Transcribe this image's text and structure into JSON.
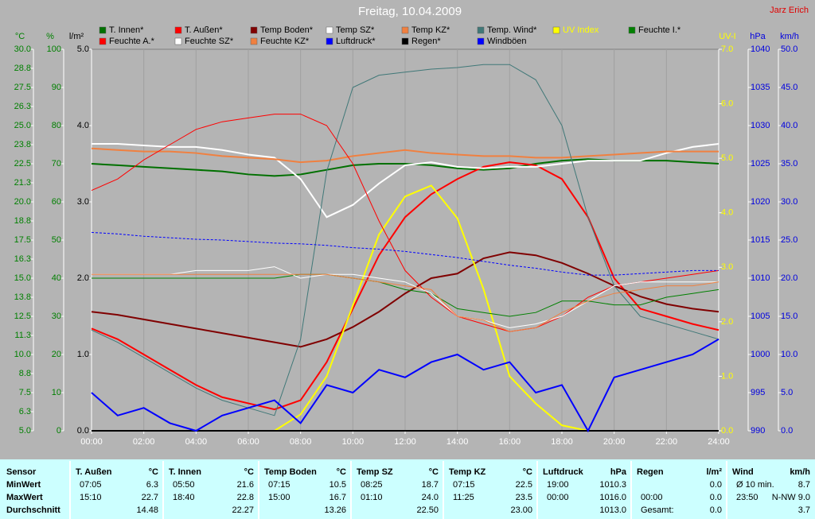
{
  "chart_data": {
    "type": "line",
    "title": "Freitag, 10.04.2009",
    "author": "Jarz Erich",
    "xlim": [
      0,
      24
    ],
    "xticks": [
      {
        "value": 0,
        "label": "00:00"
      },
      {
        "value": 2,
        "label": "02:00"
      },
      {
        "value": 4,
        "label": "04:00"
      },
      {
        "value": 6,
        "label": "06:00"
      },
      {
        "value": 8,
        "label": "08:00"
      },
      {
        "value": 10,
        "label": "10:00"
      },
      {
        "value": 12,
        "label": "12:00"
      },
      {
        "value": 14,
        "label": "14:00"
      },
      {
        "value": 16,
        "label": "16:00"
      },
      {
        "value": 18,
        "label": "18:00"
      },
      {
        "value": 20,
        "label": "20:00"
      },
      {
        "value": 22,
        "label": "22:00"
      },
      {
        "value": 24,
        "label": "24:00"
      }
    ],
    "grid": true,
    "y_axes": {
      "y": {
        "label": "°C",
        "color": "#008000",
        "lim": [
          5,
          30
        ],
        "ticks": [
          {
            "value": 30,
            "label": "30.0"
          },
          {
            "value": 28.75,
            "label": "28.8"
          },
          {
            "value": 27.5,
            "label": "27.5"
          },
          {
            "value": 26.25,
            "label": "26.3"
          },
          {
            "value": 25,
            "label": "25.0"
          },
          {
            "value": 23.75,
            "label": "23.8"
          },
          {
            "value": 22.5,
            "label": "22.5"
          },
          {
            "value": 21.25,
            "label": "21.3"
          },
          {
            "value": 20,
            "label": "20.0"
          },
          {
            "value": 18.75,
            "label": "18.8"
          },
          {
            "value": 17.5,
            "label": "17.5"
          },
          {
            "value": 16.25,
            "label": "16.3"
          },
          {
            "value": 15,
            "label": "15.0"
          },
          {
            "value": 13.75,
            "label": "13.8"
          },
          {
            "value": 12.5,
            "label": "12.5"
          },
          {
            "value": 11.25,
            "label": "11.3"
          },
          {
            "value": 10,
            "label": "10.0"
          },
          {
            "value": 8.75,
            "label": "8.8"
          },
          {
            "value": 7.5,
            "label": "7.5"
          },
          {
            "value": 6.25,
            "label": "6.3"
          },
          {
            "value": 5,
            "label": "5.0"
          }
        ]
      },
      "y2": {
        "label": "%",
        "color": "#008000",
        "lim": [
          0,
          100
        ],
        "ticks": [
          0,
          10,
          20,
          30,
          40,
          50,
          60,
          70,
          80,
          90,
          100
        ]
      },
      "y3": {
        "label": "l/m²",
        "color": "#000000",
        "lim": [
          0,
          5
        ],
        "ticks": [
          {
            "value": 0,
            "label": "0.0"
          },
          {
            "value": 1,
            "label": "1.0"
          },
          {
            "value": 2,
            "label": "2.0"
          },
          {
            "value": 3,
            "label": "3.0"
          },
          {
            "value": 4,
            "label": "4.0"
          },
          {
            "value": 5,
            "label": "5.0"
          }
        ]
      },
      "y4": {
        "label": "UV-I",
        "color": "#ffff00",
        "lim": [
          0,
          7
        ],
        "ticks": [
          {
            "value": 0,
            "label": "0.0"
          },
          {
            "value": 1,
            "label": "1.0"
          },
          {
            "value": 2,
            "label": "2.0"
          },
          {
            "value": 3,
            "label": "3.0"
          },
          {
            "value": 4,
            "label": "4.0"
          },
          {
            "value": 5,
            "label": "5.0"
          },
          {
            "value": 6,
            "label": "6.0"
          },
          {
            "value": 7,
            "label": "7.0"
          }
        ]
      },
      "y5": {
        "label": "hPa",
        "color": "#0000e0",
        "lim": [
          990,
          1040
        ],
        "ticks": [
          990,
          995,
          1000,
          1005,
          1010,
          1015,
          1020,
          1025,
          1030,
          1035,
          1040
        ]
      },
      "y6": {
        "label": "km/h",
        "color": "#0000e0",
        "lim": [
          0,
          50
        ],
        "ticks": [
          {
            "value": 0,
            "label": "0.0"
          },
          {
            "value": 5,
            "label": "5.0"
          },
          {
            "value": 10,
            "label": "10.0"
          },
          {
            "value": 15,
            "label": "15.0"
          },
          {
            "value": 20,
            "label": "20.0"
          },
          {
            "value": 25,
            "label": "25.0"
          },
          {
            "value": 30,
            "label": "30.0"
          },
          {
            "value": 35,
            "label": "35.0"
          },
          {
            "value": 40,
            "label": "40.0"
          },
          {
            "value": 45,
            "label": "45.0"
          },
          {
            "value": 50,
            "label": "50.0"
          }
        ]
      }
    },
    "x": [
      0,
      1,
      2,
      3,
      4,
      5,
      6,
      7,
      8,
      9,
      10,
      11,
      12,
      13,
      14,
      15,
      16,
      17,
      18,
      19,
      20,
      21,
      22,
      23,
      24
    ],
    "series": [
      {
        "name": "T. Innen*",
        "color": "#007000",
        "axis": "y",
        "style": "thick",
        "values": [
          22.5,
          22.4,
          22.3,
          22.2,
          22.1,
          22.0,
          21.8,
          21.7,
          21.8,
          22.1,
          22.4,
          22.5,
          22.5,
          22.4,
          22.2,
          22.1,
          22.2,
          22.5,
          22.7,
          22.8,
          22.7,
          22.7,
          22.7,
          22.6,
          22.5
        ]
      },
      {
        "name": "T. Außen*",
        "color": "#ff0000",
        "axis": "y",
        "style": "thick",
        "values": [
          11.7,
          11.0,
          10.0,
          9.0,
          8.0,
          7.2,
          6.8,
          6.4,
          7.0,
          9.5,
          13.0,
          16.5,
          19.0,
          20.5,
          21.5,
          22.3,
          22.6,
          22.4,
          21.5,
          19.0,
          15.0,
          13.0,
          12.5,
          12.0,
          11.6
        ]
      },
      {
        "name": "Temp Boden*",
        "color": "#800000",
        "axis": "y",
        "style": "thick",
        "values": [
          12.8,
          12.6,
          12.3,
          12.0,
          11.7,
          11.4,
          11.1,
          10.8,
          10.5,
          11.0,
          11.8,
          12.8,
          14.0,
          15.0,
          15.3,
          16.3,
          16.7,
          16.5,
          16.0,
          15.3,
          14.5,
          13.8,
          13.3,
          13.0,
          12.8
        ]
      },
      {
        "name": "Temp SZ*",
        "color": "#ffffff",
        "axis": "y",
        "style": "thick",
        "values": [
          23.8,
          23.8,
          23.7,
          23.6,
          23.6,
          23.4,
          23.1,
          22.9,
          21.5,
          19.0,
          19.8,
          21.2,
          22.4,
          22.6,
          22.3,
          22.2,
          22.3,
          22.3,
          22.5,
          22.7,
          22.7,
          22.7,
          23.2,
          23.6,
          23.8
        ]
      },
      {
        "name": "Temp KZ*",
        "color": "#f08040",
        "axis": "y",
        "style": "thick",
        "values": [
          23.5,
          23.4,
          23.3,
          23.3,
          23.2,
          23.0,
          22.9,
          22.8,
          22.6,
          22.7,
          23.0,
          23.2,
          23.4,
          23.2,
          23.1,
          23.0,
          23.0,
          22.9,
          22.9,
          23.0,
          23.1,
          23.2,
          23.3,
          23.3,
          23.3
        ]
      },
      {
        "name": "Temp. Wind*",
        "color": "#407878",
        "axis": "y",
        "style": "thin",
        "values": [
          11.6,
          10.8,
          9.8,
          8.8,
          7.8,
          7.0,
          6.5,
          6.0,
          11.0,
          22.0,
          27.5,
          28.3,
          28.5,
          28.7,
          28.8,
          29.0,
          29.0,
          28.0,
          25.0,
          19.0,
          14.5,
          12.5,
          12.0,
          11.5,
          11.0
        ]
      },
      {
        "name": "UV Index",
        "color": "#ffff00",
        "axis": "y4",
        "style": "thick",
        "values": [
          0,
          0,
          0,
          0,
          0,
          0,
          0,
          0,
          0.3,
          1.0,
          2.3,
          3.6,
          4.3,
          4.5,
          3.9,
          2.6,
          1.0,
          0.5,
          0.1,
          0,
          0,
          0,
          0,
          0,
          0
        ]
      },
      {
        "name": "Feuchte I.*",
        "color": "#008000",
        "axis": "y2",
        "style": "thin",
        "values": [
          40,
          40,
          40,
          40,
          40,
          40,
          40,
          40,
          41,
          41,
          40,
          39,
          37,
          36,
          32,
          31,
          30,
          31,
          34,
          34,
          33,
          33,
          35,
          36,
          37
        ]
      },
      {
        "name": "Feuchte A.*",
        "color": "#ff0000",
        "axis": "y2",
        "style": "thin",
        "values": [
          63,
          66,
          71,
          75,
          79,
          81,
          82,
          83,
          83,
          80,
          70,
          55,
          42,
          35,
          30,
          28,
          26,
          27,
          30,
          35,
          38,
          39,
          40,
          41,
          42
        ]
      },
      {
        "name": "Feuchte SZ*",
        "color": "#ffffff",
        "axis": "y2",
        "style": "thin",
        "values": [
          41,
          41,
          41,
          41,
          42,
          42,
          42,
          43,
          40,
          41,
          41,
          40,
          39,
          36,
          30,
          29,
          27,
          28,
          30,
          34,
          38,
          39,
          39,
          39,
          39
        ]
      },
      {
        "name": "Feuchte KZ*",
        "color": "#f08040",
        "axis": "y2",
        "style": "thin",
        "values": [
          41,
          41,
          41,
          41,
          41,
          41,
          41,
          41,
          41,
          41,
          40,
          39,
          38,
          37,
          30,
          29,
          26,
          27,
          31,
          34,
          36,
          37,
          38,
          38,
          39
        ]
      },
      {
        "name": "Luftdruck*",
        "color": "#0000ff",
        "axis": "y5",
        "style": "dashed",
        "values": [
          1016.0,
          1015.8,
          1015.5,
          1015.3,
          1015.1,
          1015.0,
          1014.8,
          1014.6,
          1014.5,
          1014.3,
          1014.0,
          1013.8,
          1013.5,
          1013.1,
          1012.7,
          1012.2,
          1011.7,
          1011.3,
          1010.8,
          1010.4,
          1010.4,
          1010.6,
          1010.8,
          1011.0,
          1011.0
        ]
      },
      {
        "name": "Regen*",
        "color": "#000000",
        "axis": "y3",
        "style": "thick",
        "values": [
          0,
          0,
          0,
          0,
          0,
          0,
          0,
          0,
          0,
          0,
          0,
          0,
          0,
          0,
          0,
          0,
          0,
          0,
          0,
          0,
          0,
          0,
          0,
          0,
          0
        ]
      },
      {
        "name": "Windböen",
        "color": "#0000ff",
        "axis": "y6",
        "style": "thick",
        "values": [
          5,
          2,
          3,
          1,
          0,
          2,
          3,
          4,
          1,
          6,
          5,
          8,
          7,
          9,
          10,
          8,
          9,
          5,
          6,
          0,
          7,
          8,
          9,
          10,
          12
        ]
      }
    ]
  },
  "table": {
    "sensor": {
      "name": "Sensor",
      "rows": [
        "MinWert",
        "MaxWert",
        "Durchschnitt"
      ]
    },
    "groups": [
      {
        "name": "T. Außen",
        "unit": "°C",
        "rows": [
          [
            "07:05",
            "6.3"
          ],
          [
            "15:10",
            "22.7"
          ],
          [
            "14.48"
          ]
        ]
      },
      {
        "name": "T. Innen",
        "unit": "°C",
        "rows": [
          [
            "05:50",
            "21.6"
          ],
          [
            "18:40",
            "22.8"
          ],
          [
            "22.27"
          ]
        ]
      },
      {
        "name": "Temp Boden",
        "unit": "°C",
        "rows": [
          [
            "07:15",
            "10.5"
          ],
          [
            "15:00",
            "16.7"
          ],
          [
            "13.26"
          ]
        ]
      },
      {
        "name": "Temp SZ",
        "unit": "°C",
        "rows": [
          [
            "08:25",
            "18.7"
          ],
          [
            "01:10",
            "24.0"
          ],
          [
            "22.50"
          ]
        ]
      },
      {
        "name": "Temp KZ",
        "unit": "°C",
        "rows": [
          [
            "07:15",
            "22.5"
          ],
          [
            "11:25",
            "23.5"
          ],
          [
            "23.00"
          ]
        ]
      },
      {
        "name": "Luftdruck",
        "unit": "hPa",
        "rows": [
          [
            "19:00",
            "1010.3"
          ],
          [
            "00:00",
            "1016.0"
          ],
          [
            "1013.0"
          ]
        ]
      },
      {
        "name": "Regen",
        "unit": "l/m²",
        "rows": [
          [
            "0.0"
          ],
          [
            "00:00",
            "0.0"
          ],
          [
            "Gesamt:",
            "0.0"
          ]
        ]
      },
      {
        "name": "Wind",
        "unit": "km/h",
        "rows": [
          [
            "Ø 10 min.",
            "8.7"
          ],
          [
            "23:50",
            "N-NW 9.0"
          ],
          [
            "3.7"
          ]
        ]
      }
    ]
  }
}
